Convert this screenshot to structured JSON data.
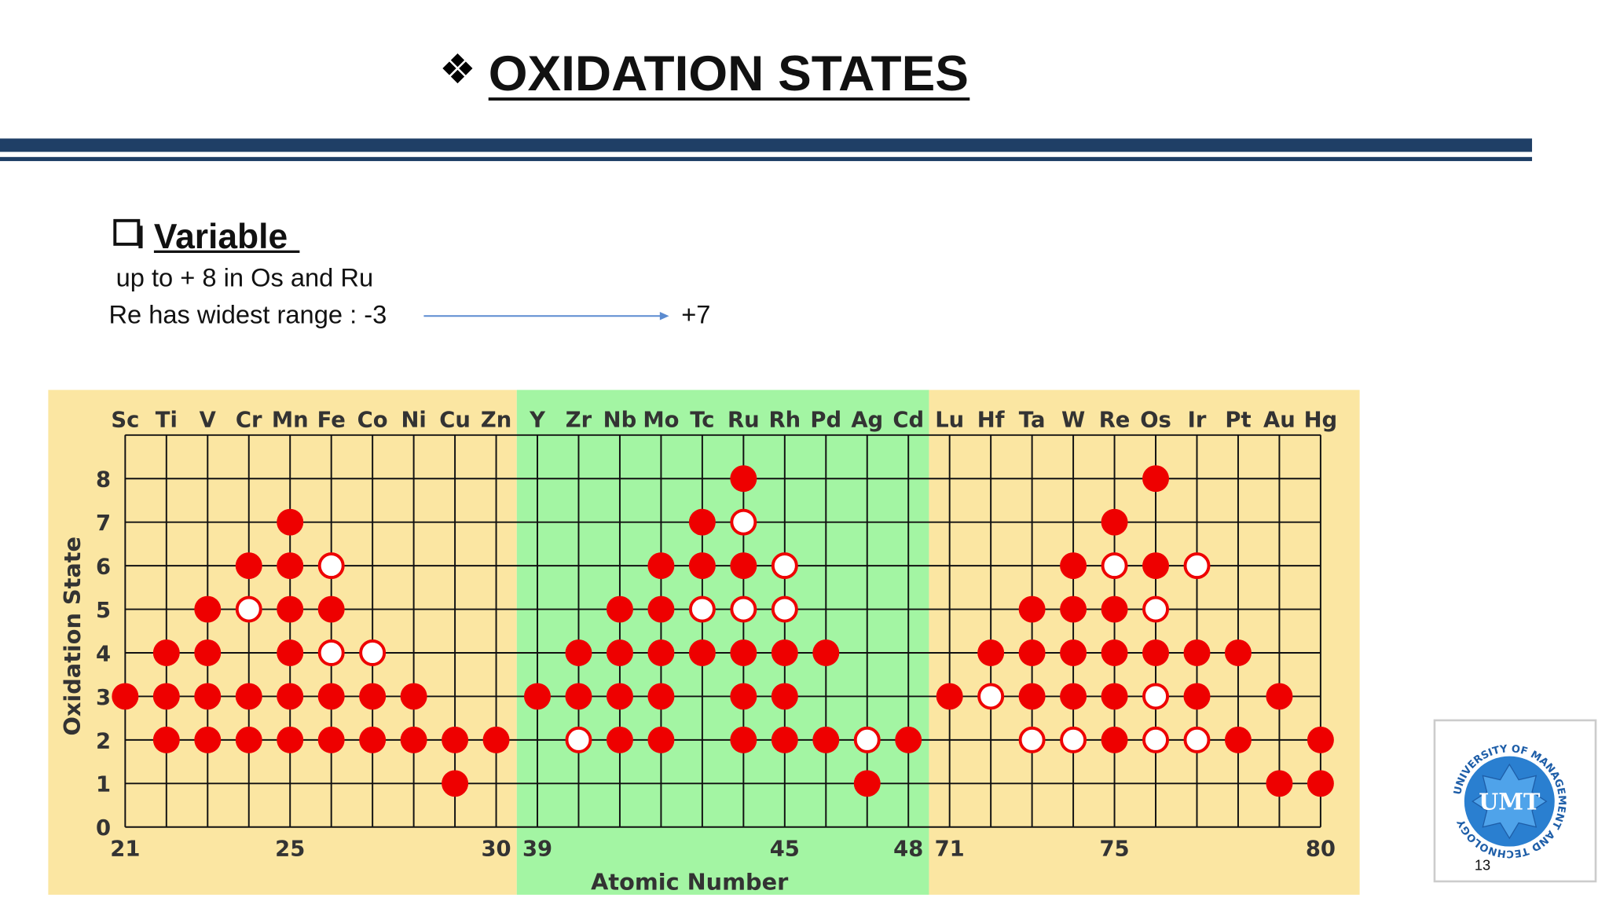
{
  "header": {
    "title": "OXIDATION STATES"
  },
  "body": {
    "heading": "Variable",
    "lines": [
      "up to + 8 in Os and Ru",
      "Re has widest range : -3",
      "+7"
    ]
  },
  "footer": {
    "logo": "UMT",
    "logo_ring": "UNIVERSITY OF MANAGEMENT AND TECHNOLOGY",
    "page": "13"
  },
  "chart_data": {
    "type": "dot",
    "xlabel": "Atomic Number",
    "ylabel": "Oxidation State",
    "categories": [
      "Sc",
      "Ti",
      "V",
      "Cr",
      "Mn",
      "Fe",
      "Co",
      "Ni",
      "Cu",
      "Zn",
      "Y",
      "Zr",
      "Nb",
      "Mo",
      "Tc",
      "Ru",
      "Rh",
      "Pd",
      "Ag",
      "Cd",
      "Lu",
      "Hf",
      "Ta",
      "W",
      "Re",
      "Os",
      "Ir",
      "Pt",
      "Au",
      "Hg"
    ],
    "atomic_numbers": [
      21,
      null,
      null,
      null,
      25,
      null,
      null,
      null,
      null,
      30,
      39,
      null,
      null,
      null,
      null,
      null,
      45,
      null,
      null,
      48,
      71,
      null,
      null,
      null,
      75,
      null,
      null,
      null,
      null,
      80
    ],
    "filled": [
      [
        3
      ],
      [
        4,
        3,
        2
      ],
      [
        5,
        4,
        3,
        2
      ],
      [
        6,
        3,
        2
      ],
      [
        7,
        6,
        5,
        4,
        3,
        2
      ],
      [
        5,
        3,
        2
      ],
      [
        3,
        2
      ],
      [
        3,
        2
      ],
      [
        2,
        1
      ],
      [
        2
      ],
      [
        3
      ],
      [
        4,
        3
      ],
      [
        5,
        4,
        3,
        2
      ],
      [
        6,
        5,
        4,
        3,
        2
      ],
      [
        7,
        6,
        4
      ],
      [
        8,
        6,
        4,
        3,
        2
      ],
      [
        4,
        3,
        2
      ],
      [
        4,
        2
      ],
      [
        1
      ],
      [
        2
      ],
      [
        3
      ],
      [
        4
      ],
      [
        5,
        4,
        3
      ],
      [
        6,
        5,
        4,
        3
      ],
      [
        7,
        5,
        4,
        3,
        2
      ],
      [
        8,
        6,
        4
      ],
      [
        4,
        3
      ],
      [
        4,
        2
      ],
      [
        3,
        1
      ],
      [
        2,
        1
      ]
    ],
    "open": [
      [],
      [],
      [],
      [
        5
      ],
      [],
      [
        6,
        4
      ],
      [
        4
      ],
      [],
      [],
      [],
      [],
      [
        2
      ],
      [],
      [],
      [
        5
      ],
      [
        7,
        5
      ],
      [
        6,
        5
      ],
      [],
      [
        2
      ],
      [],
      [],
      [
        3
      ],
      [
        2
      ],
      [
        2
      ],
      [
        6
      ],
      [
        5,
        3,
        2
      ],
      [
        6,
        2
      ],
      [],
      [],
      []
    ],
    "color": "#ee0000",
    "ylim": [
      0,
      9
    ],
    "yticks": [
      0,
      1,
      2,
      3,
      4,
      5,
      6,
      7,
      8
    ],
    "grid": true,
    "bands": [
      {
        "color": "#fbe6a2",
        "count": 10
      },
      {
        "color": "#a3f5a3",
        "count": 10
      },
      {
        "color": "#fbe6a2",
        "count": 10
      }
    ]
  }
}
